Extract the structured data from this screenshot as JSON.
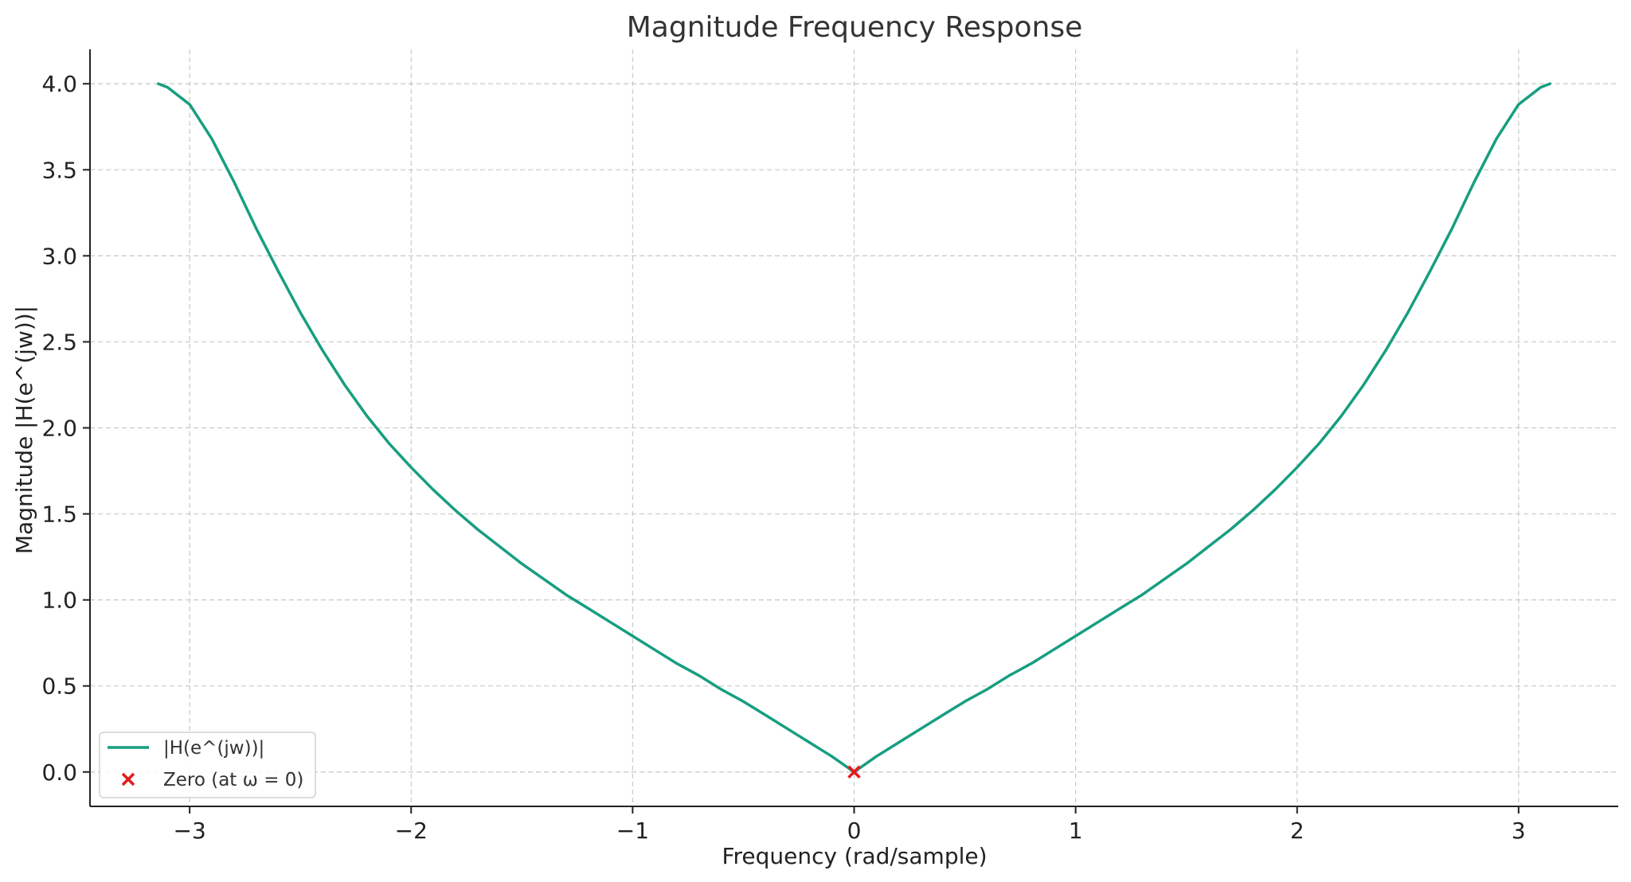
{
  "chart_data": {
    "type": "line",
    "title": "Magnitude Frequency Response",
    "xlabel": "Frequency (rad/sample)",
    "ylabel": "Magnitude |H(e^(jw))|",
    "xlim": [
      -3.45,
      3.45
    ],
    "ylim": [
      -0.2,
      4.2
    ],
    "x_ticks": [
      -3,
      -2,
      -1,
      0,
      1,
      2,
      3
    ],
    "x_tick_labels": [
      "−3",
      "−2",
      "−1",
      "0",
      "1",
      "2",
      "3"
    ],
    "y_ticks": [
      0.0,
      0.5,
      1.0,
      1.5,
      2.0,
      2.5,
      3.0,
      3.5,
      4.0
    ],
    "y_tick_labels": [
      "0.0",
      "0.5",
      "1.0",
      "1.5",
      "2.0",
      "2.5",
      "3.0",
      "3.5",
      "4.0"
    ],
    "grid": true,
    "legend_position": "lower-left",
    "series": [
      {
        "name": "|H(e^(jw))|",
        "color": "#179e80",
        "x": [
          -3.1416,
          -3.1,
          -3.0,
          -2.9,
          -2.8,
          -2.7,
          -2.6,
          -2.5,
          -2.4,
          -2.3,
          -2.2,
          -2.1,
          -2.0,
          -1.9,
          -1.8,
          -1.7,
          -1.6,
          -1.5,
          -1.4,
          -1.3,
          -1.2,
          -1.1,
          -1.0,
          -0.9,
          -0.8,
          -0.7,
          -0.6,
          -0.5,
          -0.4,
          -0.3,
          -0.2,
          -0.1,
          0.0,
          0.1,
          0.2,
          0.3,
          0.4,
          0.5,
          0.6,
          0.7,
          0.8,
          0.9,
          1.0,
          1.1,
          1.2,
          1.3,
          1.4,
          1.5,
          1.6,
          1.7,
          1.8,
          1.9,
          2.0,
          2.1,
          2.2,
          2.3,
          2.4,
          2.5,
          2.6,
          2.7,
          2.8,
          2.9,
          3.0,
          3.1,
          3.1416
        ],
        "y": [
          4.0,
          3.98,
          3.88,
          3.68,
          3.43,
          3.16,
          2.91,
          2.67,
          2.45,
          2.25,
          2.07,
          1.91,
          1.77,
          1.64,
          1.52,
          1.41,
          1.31,
          1.21,
          1.12,
          1.03,
          0.95,
          0.87,
          0.79,
          0.71,
          0.63,
          0.56,
          0.48,
          0.41,
          0.33,
          0.25,
          0.17,
          0.09,
          0.0,
          0.09,
          0.17,
          0.25,
          0.33,
          0.41,
          0.48,
          0.56,
          0.63,
          0.71,
          0.79,
          0.87,
          0.95,
          1.03,
          1.12,
          1.21,
          1.31,
          1.41,
          1.52,
          1.64,
          1.77,
          1.91,
          2.07,
          2.25,
          2.45,
          2.67,
          2.91,
          3.16,
          3.43,
          3.68,
          3.88,
          3.98,
          4.0
        ]
      },
      {
        "name": "Zero (at ω = 0)",
        "color": "#e31a1c",
        "type": "scatter",
        "marker": "x",
        "x": [
          0.0
        ],
        "y": [
          0.0
        ]
      }
    ]
  }
}
